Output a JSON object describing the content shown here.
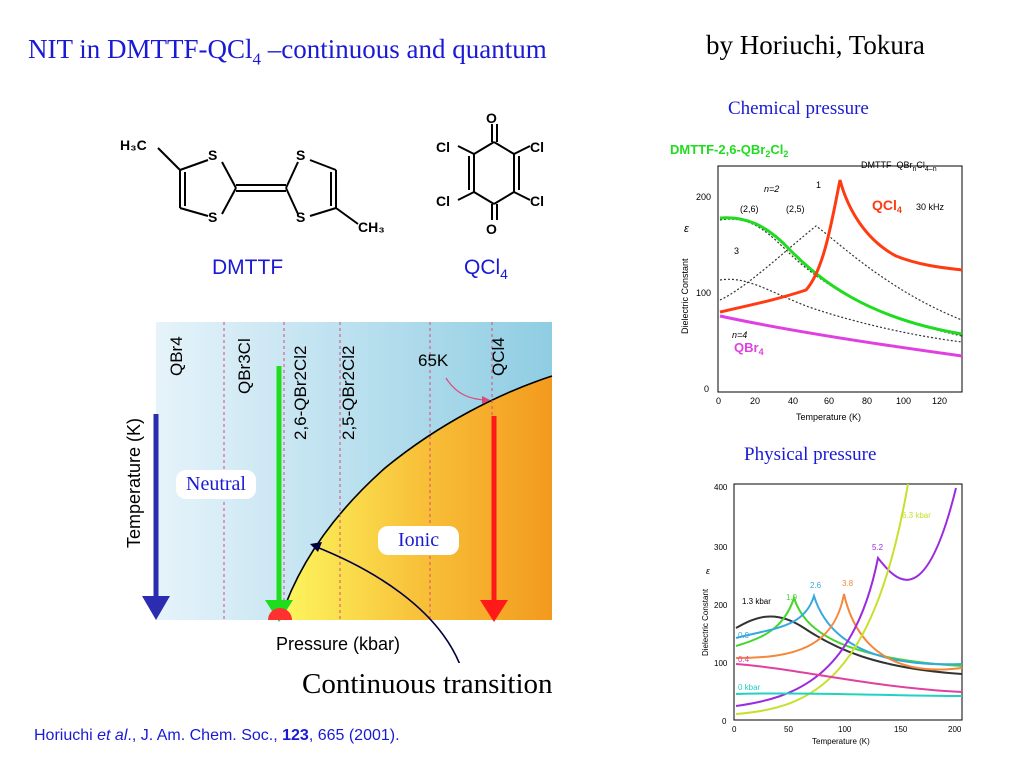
{
  "title": {
    "main": "NIT in DMTTF-QCl",
    "sub": "4",
    "rest": " –continuous and quantum"
  },
  "authors": "by Horiuchi, Tokura",
  "molecules": {
    "dmttf": {
      "label": "DMTTF",
      "atom_s": "S",
      "atom_h3c": "H₃C",
      "atom_ch3": "CH₃"
    },
    "qcl4": {
      "label_main": "QCl",
      "label_sub": "4",
      "atom_o": "O",
      "atom_cl": "Cl"
    }
  },
  "phase_diagram": {
    "ylabel": "Temperature (K)",
    "xlabel": "Pressure (kbar)",
    "compounds": [
      "QBr4",
      "QBr3Cl",
      "2,6-QBr2Cl2",
      "2,5-QBr2Cl2",
      "QCl4"
    ],
    "annotation": "65K",
    "neutral": "Neutral",
    "ionic": "Ionic",
    "colors": {
      "blue_bg": "#a8d8ea",
      "ionic_orange": "#f5a623",
      "ionic_yellow": "#f9f37a",
      "green": "#1fdc1f",
      "red": "#ff1a1a",
      "navy": "#2c2cb0"
    }
  },
  "continuous_transition": "Continuous transition",
  "reference": {
    "authors": "Horiuchi ",
    "etal": "et al",
    "journal": "., J. Am. Chem. Soc., ",
    "volume": "123",
    "rest": ", 665 (2001)."
  },
  "chemical_pressure": {
    "caption": "Chemical pressure",
    "dmttf_label_main": "DMTTF-2,6-QBr",
    "dmttf_label_sub1": "2",
    "dmttf_label_mid": "Cl",
    "dmttf_label_sub2": "2",
    "qcl4_label_main": "QCl",
    "qcl4_label_sub": "4",
    "qbr4_label_main": "QBr",
    "qbr4_label_sub": "4",
    "inset_title": "DMTTF–QBr",
    "inset_n": "n",
    "inset_cl": "Cl",
    "inset_4n": "4–n",
    "freq": "30 kHz",
    "n2": "n=2",
    "n4": "n=4",
    "c26": "(2,6)",
    "c25": "(2,5)",
    "c1": "1",
    "c3": "3",
    "ylabel": "Dielectric Constant",
    "eps": "ε",
    "xlabel": "Temperature  (K)",
    "xticks": [
      "0",
      "20",
      "40",
      "60",
      "80",
      "100",
      "120"
    ],
    "yticks": [
      "0",
      "100",
      "200"
    ]
  },
  "physical_pressure": {
    "caption": "Physical pressure",
    "ylabel": "Dielectric Constant",
    "eps": "ε",
    "xlabel": "Temperature (K)",
    "xticks": [
      "0",
      "50",
      "100",
      "150",
      "200"
    ],
    "yticks": [
      "0",
      "100",
      "200",
      "300",
      "400"
    ],
    "labels": [
      "1.3 kbar",
      "1.9",
      "2.6",
      "3.8",
      "5.2",
      "6.3 kbar",
      "0.9",
      "0.4",
      "0 kbar"
    ]
  }
}
